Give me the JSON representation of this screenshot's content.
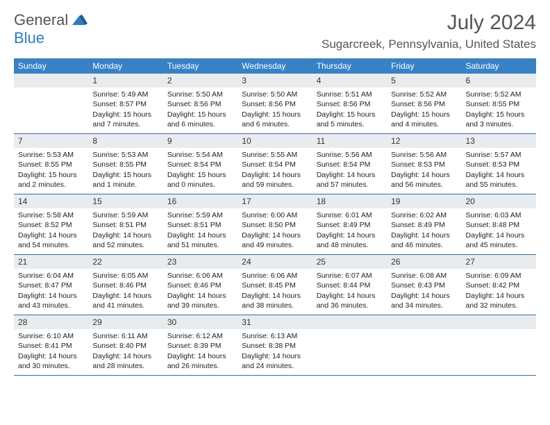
{
  "logo": {
    "text_gray": "General",
    "text_blue": "Blue"
  },
  "title": "July 2024",
  "location": "Sugarcreek, Pennsylvania, United States",
  "colors": {
    "header_bg": "#3981c5",
    "daynum_bg": "#e9ecee",
    "week_border": "#2f6fa8",
    "text_gray": "#555",
    "logo_blue": "#2f7bbe"
  },
  "weekdays": [
    "Sunday",
    "Monday",
    "Tuesday",
    "Wednesday",
    "Thursday",
    "Friday",
    "Saturday"
  ],
  "weeks": [
    [
      {
        "n": "",
        "sr": "",
        "ss": "",
        "d1": "",
        "d2": ""
      },
      {
        "n": "1",
        "sr": "Sunrise: 5:49 AM",
        "ss": "Sunset: 8:57 PM",
        "d1": "Daylight: 15 hours",
        "d2": "and 7 minutes."
      },
      {
        "n": "2",
        "sr": "Sunrise: 5:50 AM",
        "ss": "Sunset: 8:56 PM",
        "d1": "Daylight: 15 hours",
        "d2": "and 6 minutes."
      },
      {
        "n": "3",
        "sr": "Sunrise: 5:50 AM",
        "ss": "Sunset: 8:56 PM",
        "d1": "Daylight: 15 hours",
        "d2": "and 6 minutes."
      },
      {
        "n": "4",
        "sr": "Sunrise: 5:51 AM",
        "ss": "Sunset: 8:56 PM",
        "d1": "Daylight: 15 hours",
        "d2": "and 5 minutes."
      },
      {
        "n": "5",
        "sr": "Sunrise: 5:52 AM",
        "ss": "Sunset: 8:56 PM",
        "d1": "Daylight: 15 hours",
        "d2": "and 4 minutes."
      },
      {
        "n": "6",
        "sr": "Sunrise: 5:52 AM",
        "ss": "Sunset: 8:55 PM",
        "d1": "Daylight: 15 hours",
        "d2": "and 3 minutes."
      }
    ],
    [
      {
        "n": "7",
        "sr": "Sunrise: 5:53 AM",
        "ss": "Sunset: 8:55 PM",
        "d1": "Daylight: 15 hours",
        "d2": "and 2 minutes."
      },
      {
        "n": "8",
        "sr": "Sunrise: 5:53 AM",
        "ss": "Sunset: 8:55 PM",
        "d1": "Daylight: 15 hours",
        "d2": "and 1 minute."
      },
      {
        "n": "9",
        "sr": "Sunrise: 5:54 AM",
        "ss": "Sunset: 8:54 PM",
        "d1": "Daylight: 15 hours",
        "d2": "and 0 minutes."
      },
      {
        "n": "10",
        "sr": "Sunrise: 5:55 AM",
        "ss": "Sunset: 8:54 PM",
        "d1": "Daylight: 14 hours",
        "d2": "and 59 minutes."
      },
      {
        "n": "11",
        "sr": "Sunrise: 5:56 AM",
        "ss": "Sunset: 8:54 PM",
        "d1": "Daylight: 14 hours",
        "d2": "and 57 minutes."
      },
      {
        "n": "12",
        "sr": "Sunrise: 5:56 AM",
        "ss": "Sunset: 8:53 PM",
        "d1": "Daylight: 14 hours",
        "d2": "and 56 minutes."
      },
      {
        "n": "13",
        "sr": "Sunrise: 5:57 AM",
        "ss": "Sunset: 8:53 PM",
        "d1": "Daylight: 14 hours",
        "d2": "and 55 minutes."
      }
    ],
    [
      {
        "n": "14",
        "sr": "Sunrise: 5:58 AM",
        "ss": "Sunset: 8:52 PM",
        "d1": "Daylight: 14 hours",
        "d2": "and 54 minutes."
      },
      {
        "n": "15",
        "sr": "Sunrise: 5:59 AM",
        "ss": "Sunset: 8:51 PM",
        "d1": "Daylight: 14 hours",
        "d2": "and 52 minutes."
      },
      {
        "n": "16",
        "sr": "Sunrise: 5:59 AM",
        "ss": "Sunset: 8:51 PM",
        "d1": "Daylight: 14 hours",
        "d2": "and 51 minutes."
      },
      {
        "n": "17",
        "sr": "Sunrise: 6:00 AM",
        "ss": "Sunset: 8:50 PM",
        "d1": "Daylight: 14 hours",
        "d2": "and 49 minutes."
      },
      {
        "n": "18",
        "sr": "Sunrise: 6:01 AM",
        "ss": "Sunset: 8:49 PM",
        "d1": "Daylight: 14 hours",
        "d2": "and 48 minutes."
      },
      {
        "n": "19",
        "sr": "Sunrise: 6:02 AM",
        "ss": "Sunset: 8:49 PM",
        "d1": "Daylight: 14 hours",
        "d2": "and 46 minutes."
      },
      {
        "n": "20",
        "sr": "Sunrise: 6:03 AM",
        "ss": "Sunset: 8:48 PM",
        "d1": "Daylight: 14 hours",
        "d2": "and 45 minutes."
      }
    ],
    [
      {
        "n": "21",
        "sr": "Sunrise: 6:04 AM",
        "ss": "Sunset: 8:47 PM",
        "d1": "Daylight: 14 hours",
        "d2": "and 43 minutes."
      },
      {
        "n": "22",
        "sr": "Sunrise: 6:05 AM",
        "ss": "Sunset: 8:46 PM",
        "d1": "Daylight: 14 hours",
        "d2": "and 41 minutes."
      },
      {
        "n": "23",
        "sr": "Sunrise: 6:06 AM",
        "ss": "Sunset: 8:46 PM",
        "d1": "Daylight: 14 hours",
        "d2": "and 39 minutes."
      },
      {
        "n": "24",
        "sr": "Sunrise: 6:06 AM",
        "ss": "Sunset: 8:45 PM",
        "d1": "Daylight: 14 hours",
        "d2": "and 38 minutes."
      },
      {
        "n": "25",
        "sr": "Sunrise: 6:07 AM",
        "ss": "Sunset: 8:44 PM",
        "d1": "Daylight: 14 hours",
        "d2": "and 36 minutes."
      },
      {
        "n": "26",
        "sr": "Sunrise: 6:08 AM",
        "ss": "Sunset: 8:43 PM",
        "d1": "Daylight: 14 hours",
        "d2": "and 34 minutes."
      },
      {
        "n": "27",
        "sr": "Sunrise: 6:09 AM",
        "ss": "Sunset: 8:42 PM",
        "d1": "Daylight: 14 hours",
        "d2": "and 32 minutes."
      }
    ],
    [
      {
        "n": "28",
        "sr": "Sunrise: 6:10 AM",
        "ss": "Sunset: 8:41 PM",
        "d1": "Daylight: 14 hours",
        "d2": "and 30 minutes."
      },
      {
        "n": "29",
        "sr": "Sunrise: 6:11 AM",
        "ss": "Sunset: 8:40 PM",
        "d1": "Daylight: 14 hours",
        "d2": "and 28 minutes."
      },
      {
        "n": "30",
        "sr": "Sunrise: 6:12 AM",
        "ss": "Sunset: 8:39 PM",
        "d1": "Daylight: 14 hours",
        "d2": "and 26 minutes."
      },
      {
        "n": "31",
        "sr": "Sunrise: 6:13 AM",
        "ss": "Sunset: 8:38 PM",
        "d1": "Daylight: 14 hours",
        "d2": "and 24 minutes."
      },
      {
        "n": "",
        "sr": "",
        "ss": "",
        "d1": "",
        "d2": ""
      },
      {
        "n": "",
        "sr": "",
        "ss": "",
        "d1": "",
        "d2": ""
      },
      {
        "n": "",
        "sr": "",
        "ss": "",
        "d1": "",
        "d2": ""
      }
    ]
  ]
}
